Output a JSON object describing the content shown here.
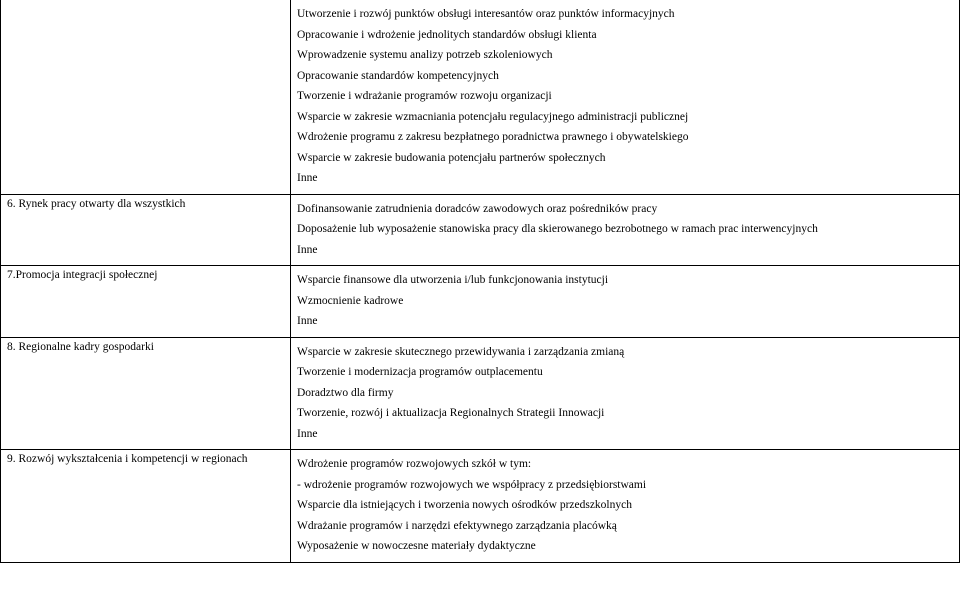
{
  "rows": [
    {
      "left": "",
      "right": [
        "Utworzenie i rozwój punktów obsługi interesantów oraz punktów informacyjnych",
        "Opracowanie i wdrożenie jednolitych standardów obsługi klienta",
        "Wprowadzenie systemu analizy potrzeb szkoleniowych",
        "Opracowanie standardów kompetencyjnych",
        "Tworzenie i wdrażanie programów rozwoju organizacji",
        "Wsparcie w zakresie wzmacniania potencjału regulacyjnego administracji publicznej",
        "Wdrożenie programu z zakresu bezpłatnego poradnictwa prawnego i obywatelskiego",
        "Wsparcie w zakresie budowania potencjału partnerów społecznych",
        "Inne"
      ]
    },
    {
      "left": "6. Rynek pracy otwarty dla wszystkich",
      "right": [
        "Dofinansowanie zatrudnienia doradców zawodowych oraz pośredników pracy",
        "Doposażenie lub wyposażenie stanowiska pracy dla skierowanego bezrobotnego w ramach prac interwencyjnych",
        "Inne"
      ]
    },
    {
      "left": "7.Promocja integracji społecznej",
      "right": [
        "Wsparcie finansowe dla utworzenia i/lub funkcjonowania instytucji",
        "Wzmocnienie kadrowe",
        "Inne"
      ]
    },
    {
      "left": "8. Regionalne kadry gospodarki",
      "right": [
        "Wsparcie w zakresie skutecznego przewidywania i zarządzania zmianą",
        "Tworzenie i modernizacja programów outplacementu",
        "Doradztwo dla firmy",
        "Tworzenie, rozwój i aktualizacja Regionalnych Strategii Innowacji",
        "Inne"
      ]
    },
    {
      "left": "9. Rozwój wykształcenia i kompetencji w regionach",
      "right": [
        "Wdrożenie programów rozwojowych szkół w tym:",
        "- wdrożenie programów rozwojowych we współpracy z przedsiębiorstwami",
        "Wsparcie dla istniejących i tworzenia nowych ośrodków przedszkolnych",
        "Wdrażanie programów i narzędzi efektywnego zarządzania placówką",
        "Wyposażenie  w nowoczesne materiały dydaktyczne"
      ]
    }
  ]
}
